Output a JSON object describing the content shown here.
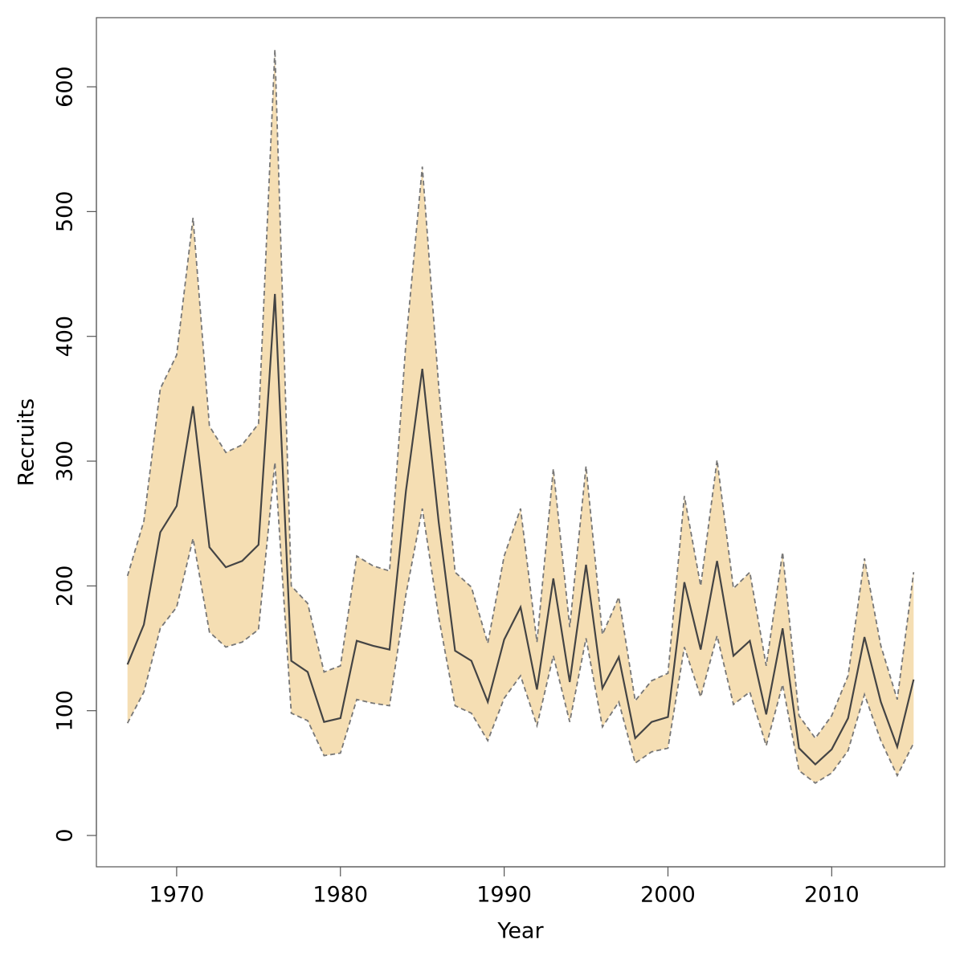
{
  "chart_data": {
    "type": "line",
    "x_label": "Year",
    "y_label": "Recruits",
    "x": [
      1967,
      1968,
      1969,
      1970,
      1971,
      1972,
      1973,
      1974,
      1975,
      1976,
      1977,
      1978,
      1979,
      1980,
      1981,
      1982,
      1983,
      1984,
      1985,
      1986,
      1987,
      1988,
      1989,
      1990,
      1991,
      1992,
      1993,
      1994,
      1995,
      1996,
      1997,
      1998,
      1999,
      2000,
      2001,
      2002,
      2003,
      2004,
      2005,
      2006,
      2007,
      2008,
      2009,
      2010,
      2011,
      2012,
      2013,
      2014,
      2015
    ],
    "values": [
      137,
      169,
      243,
      264,
      344,
      231,
      215,
      220,
      233,
      434,
      140,
      131,
      91,
      94,
      156,
      152,
      149,
      276,
      374,
      251,
      148,
      140,
      107,
      157,
      183,
      117,
      206,
      123,
      217,
      118,
      143,
      78,
      91,
      95,
      203,
      149,
      220,
      144,
      156,
      97,
      166,
      70,
      57,
      69,
      94,
      159,
      107,
      71,
      125
    ],
    "upper": [
      208,
      252,
      358,
      385,
      495,
      328,
      307,
      313,
      330,
      630,
      200,
      186,
      131,
      136,
      224,
      216,
      212,
      395,
      536,
      360,
      211,
      199,
      154,
      224,
      262,
      155,
      294,
      167,
      296,
      161,
      191,
      108,
      124,
      130,
      272,
      200,
      301,
      198,
      211,
      136,
      227,
      96,
      78,
      96,
      128,
      222,
      152,
      109,
      211
    ],
    "lower": [
      90,
      115,
      166,
      183,
      238,
      163,
      151,
      155,
      165,
      299,
      98,
      92,
      64,
      66,
      109,
      106,
      104,
      193,
      262,
      175,
      104,
      98,
      76,
      110,
      128,
      88,
      144,
      91,
      158,
      87,
      107,
      58,
      67,
      70,
      151,
      111,
      160,
      105,
      115,
      72,
      121,
      52,
      42,
      50,
      68,
      113,
      76,
      48,
      74
    ],
    "color": "#444444",
    "band_color": "#f5deb3",
    "bound_color": "#777777",
    "xlim": [
      1965.1,
      2016.9
    ],
    "ylim": [
      -25.1,
      655.4
    ],
    "xticks": [
      1970,
      1980,
      1990,
      2000,
      2010
    ],
    "yticks": [
      0,
      100,
      200,
      300,
      400,
      500,
      600
    ]
  }
}
